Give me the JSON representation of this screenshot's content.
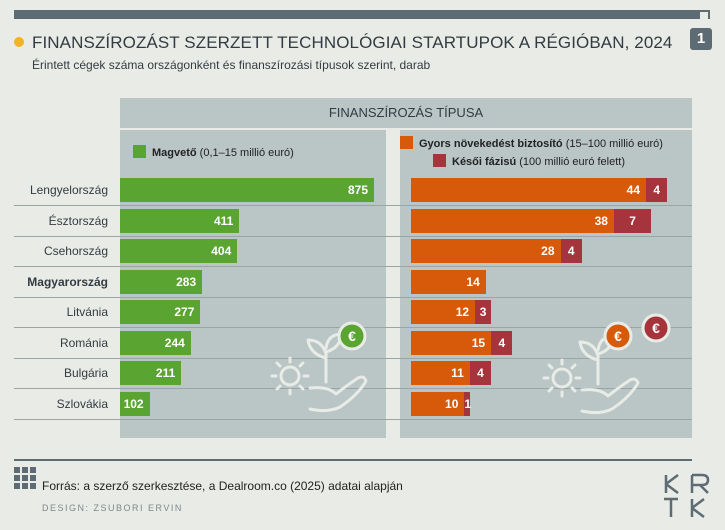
{
  "page_number": "1",
  "title": "FINANSZÍROZÁST SZERZETT TECHNOLÓGIAI STARTUPOK A RÉGIÓBAN, 2024",
  "subtitle": "Érintett cégek száma országonként és finanszírozási típusok szerint, darab",
  "header": "FINANSZÍROZÁS TÍPUSA",
  "legend": {
    "seed_bold": "Magvető",
    "seed_rest": " (0,1–15 millió euró)",
    "growth_bold": "Gyors növekedést biztosító",
    "growth_rest": " (15–100 millió euró)",
    "late_bold": "Késői fázisú",
    "late_rest": " (100 millió euró felett)"
  },
  "colors": {
    "seed": "#5aa531",
    "growth": "#d75a0b",
    "late": "#a5343d",
    "panel": "#b9c6c5"
  },
  "chart_data": {
    "type": "bar",
    "categories": [
      "Lengyelország",
      "Észtország",
      "Csehország",
      "Magyarország",
      "Litvánia",
      "Románia",
      "Bulgária",
      "Szlovákia"
    ],
    "highlight": "Magyarország",
    "series": [
      {
        "name": "Magvető (0,1–15 millió euró)",
        "values": [
          875,
          411,
          404,
          283,
          277,
          244,
          211,
          102
        ]
      },
      {
        "name": "Gyors növekedést biztosító (15–100 millió euró)",
        "values": [
          44,
          38,
          28,
          14,
          12,
          15,
          11,
          10
        ]
      },
      {
        "name": "Késői fázisú (100 millió euró felett)",
        "values": [
          4,
          7,
          4,
          0,
          3,
          4,
          4,
          1
        ]
      }
    ]
  },
  "icons": [
    "euro-coin-icon",
    "hand-plant-gear-icon"
  ],
  "source": "Forrás: a szerző szerkesztése, a Dealroom.co (2025) adatai alapján",
  "design_credit": "DESIGN: ZSUBORI ERVIN",
  "logo": {
    "letters": [
      "K",
      "R",
      "T",
      "K"
    ]
  }
}
